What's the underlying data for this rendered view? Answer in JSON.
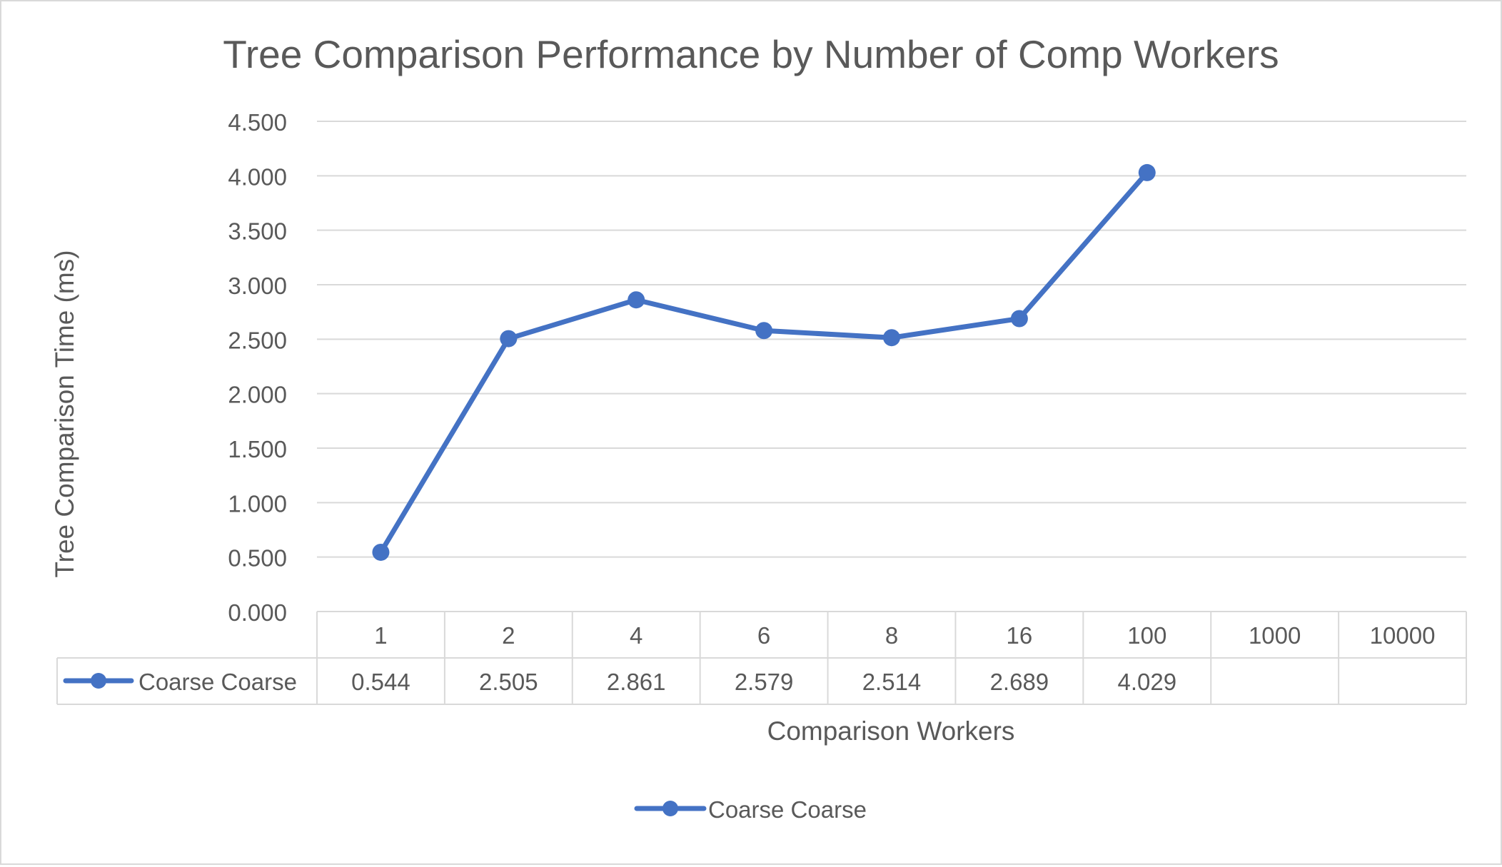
{
  "chart_data": {
    "type": "line",
    "title": "Tree Comparison Performance by Number of Comp Workers",
    "xlabel": "Comparison Workers",
    "ylabel": "Tree Comparison Time (ms)",
    "categories": [
      "1",
      "2",
      "4",
      "6",
      "8",
      "16",
      "100",
      "1000",
      "10000"
    ],
    "series": [
      {
        "name": "Coarse Coarse",
        "color": "#4472c4",
        "values": [
          0.544,
          2.505,
          2.861,
          2.579,
          2.514,
          2.689,
          4.029,
          null,
          null
        ],
        "table_labels": [
          "0.544",
          "2.505",
          "2.861",
          "2.579",
          "2.514",
          "2.689",
          "4.029",
          "",
          ""
        ]
      }
    ],
    "ylim": [
      0,
      4.5
    ],
    "ytick_labels": [
      "0.000",
      "0.500",
      "1.000",
      "1.500",
      "2.000",
      "2.500",
      "3.000",
      "3.500",
      "4.000",
      "4.500"
    ],
    "grid": true,
    "data_table": true,
    "legend": {
      "position": "bottom",
      "entries": [
        "Coarse Coarse"
      ]
    }
  }
}
